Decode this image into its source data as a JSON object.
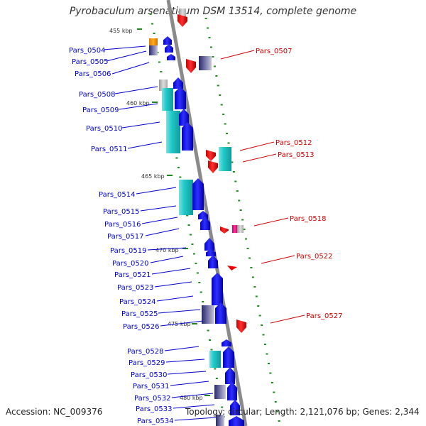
{
  "title": "Pyrobaculum arsenaticum DSM 13514, complete genome",
  "accession_label": "Accession: NC_009376",
  "summary": "Topology: circular; Length: 2,121,076 bp; Genes: 2,344",
  "colors": {
    "backbone": "#888888",
    "forward_gene": "#0000ee",
    "reverse_gene": "#ee0000",
    "cyan_feature": "#22cccc",
    "orange_feature": "#ff9900",
    "tick": "#228822",
    "left_label": "#0000cc",
    "right_label": "#cc0000"
  },
  "kbp_markers": [
    "455 kbp",
    "460 kbp",
    "465 kbp",
    "470 kbp",
    "475 kbp",
    "480 kbp"
  ],
  "left_genes": [
    "Pars_0504",
    "Pars_0505",
    "Pars_0506",
    "Pars_0508",
    "Pars_0509",
    "Pars_0510",
    "Pars_0511",
    "Pars_0514",
    "Pars_0515",
    "Pars_0516",
    "Pars_0517",
    "Pars_0519",
    "Pars_0520",
    "Pars_0521",
    "Pars_0523",
    "Pars_0524",
    "Pars_0525",
    "Pars_0526",
    "Pars_0528",
    "Pars_0529",
    "Pars_0530",
    "Pars_0531",
    "Pars_0532",
    "Pars_0533",
    "Pars_0534"
  ],
  "right_genes": [
    "Pars_0507",
    "Pars_0512",
    "Pars_0513",
    "Pars_0518",
    "Pars_0522",
    "Pars_0527"
  ]
}
